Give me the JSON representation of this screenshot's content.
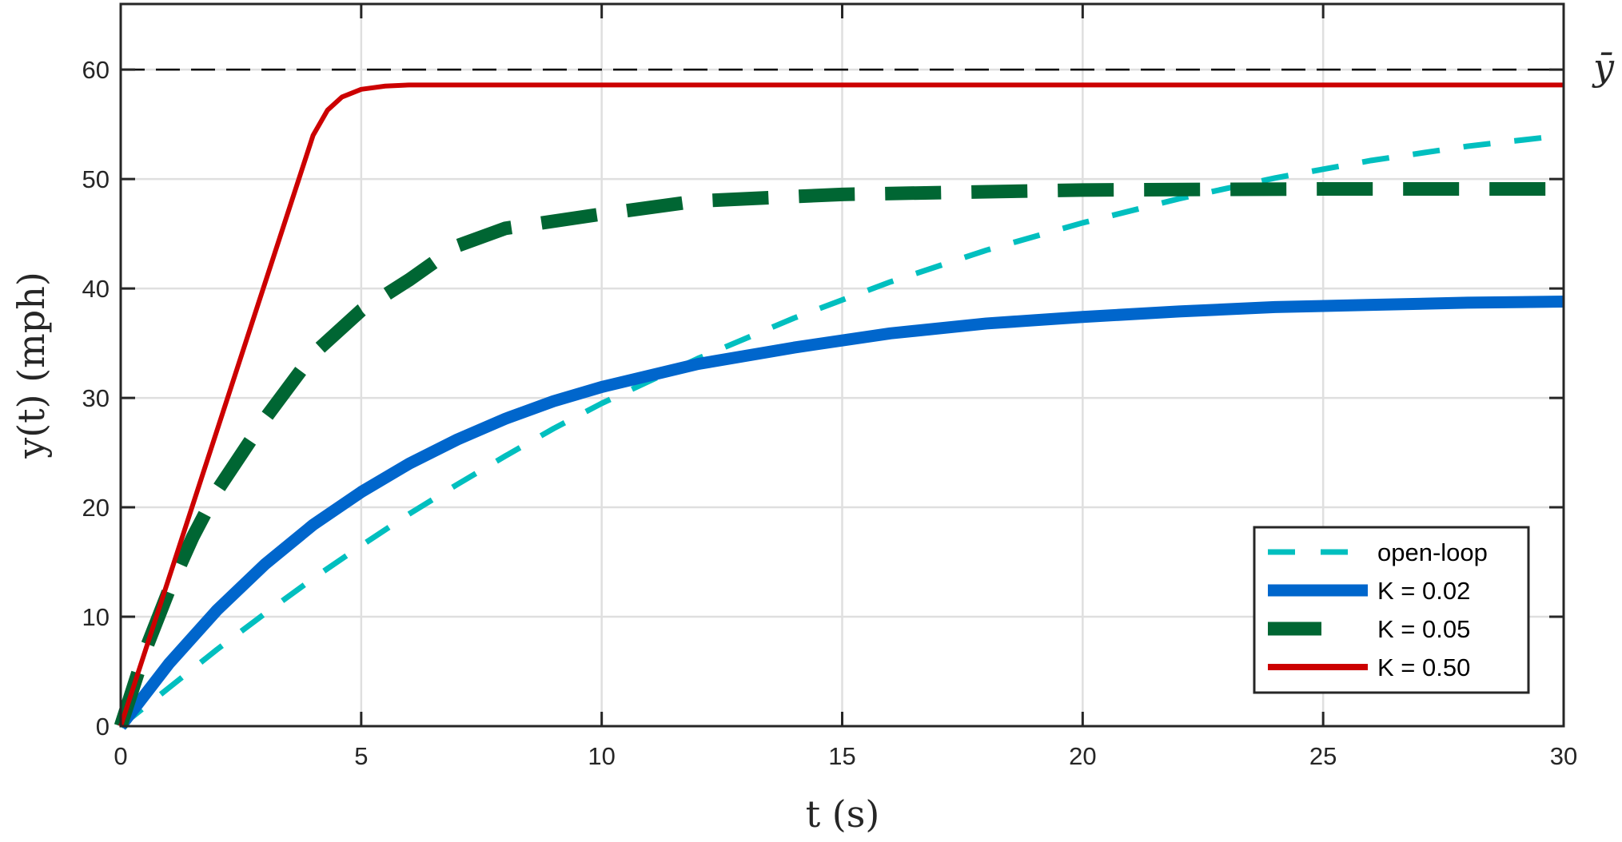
{
  "chart_data": {
    "type": "line",
    "xlabel": "t (s)",
    "ylabel": "y(t) (mph)",
    "xlim": [
      0,
      30
    ],
    "ylim": [
      0,
      66
    ],
    "xticks": [
      "0",
      "5",
      "10",
      "15",
      "20",
      "25",
      "30"
    ],
    "yticks": [
      "0",
      "10",
      "20",
      "30",
      "40",
      "50",
      "60"
    ],
    "grid": true,
    "legend_position": "bottom-right",
    "reference_line": {
      "label": "ȳ",
      "y": 60,
      "color": "#000000",
      "style": "dashed"
    },
    "series": [
      {
        "name": "open-loop",
        "color": "#00BFBF",
        "style": "dashed",
        "x": [
          0,
          1,
          2,
          3,
          4,
          5,
          6,
          7,
          8,
          9,
          10,
          12,
          14,
          16,
          18,
          20,
          22,
          24,
          26,
          28,
          30
        ],
        "y": [
          0,
          3.5,
          7,
          10.3,
          13.5,
          16.5,
          19.4,
          22.1,
          24.7,
          27.2,
          29.5,
          33.6,
          37.3,
          40.6,
          43.5,
          46.0,
          48.2,
          50.1,
          51.7,
          53.0,
          54.0
        ]
      },
      {
        "name": "K = 0.02",
        "color": "#0066CC",
        "style": "solid-thick",
        "x": [
          0,
          1,
          2,
          3,
          4,
          5,
          6,
          7,
          8,
          9,
          10,
          12,
          14,
          16,
          18,
          20,
          22,
          24,
          26,
          28,
          30
        ],
        "y": [
          0,
          5.7,
          10.6,
          14.8,
          18.4,
          21.4,
          24.0,
          26.2,
          28.1,
          29.7,
          31.0,
          33.1,
          34.6,
          35.9,
          36.8,
          37.4,
          37.9,
          38.3,
          38.5,
          38.7,
          38.8
        ]
      },
      {
        "name": "K = 0.05",
        "color": "#006633",
        "style": "dashed-thick",
        "x": [
          0,
          0.5,
          1,
          1.5,
          2,
          3,
          4,
          5,
          6,
          7,
          8,
          10,
          12,
          15,
          20,
          25,
          30
        ],
        "y": [
          0,
          6.8,
          12.4,
          17.3,
          21.5,
          28.1,
          34.0,
          38.0,
          40.8,
          43.9,
          45.5,
          46.8,
          48.0,
          48.6,
          49.0,
          49.1,
          49.1
        ]
      },
      {
        "name": "K = 0.50",
        "color": "#CC0000",
        "style": "solid",
        "x": [
          0,
          1,
          2,
          3,
          4,
          4.3,
          4.6,
          5,
          5.5,
          6,
          30
        ],
        "y": [
          0,
          13.5,
          27,
          40.5,
          54,
          56.3,
          57.5,
          58.2,
          58.5,
          58.6,
          58.6
        ]
      }
    ]
  }
}
